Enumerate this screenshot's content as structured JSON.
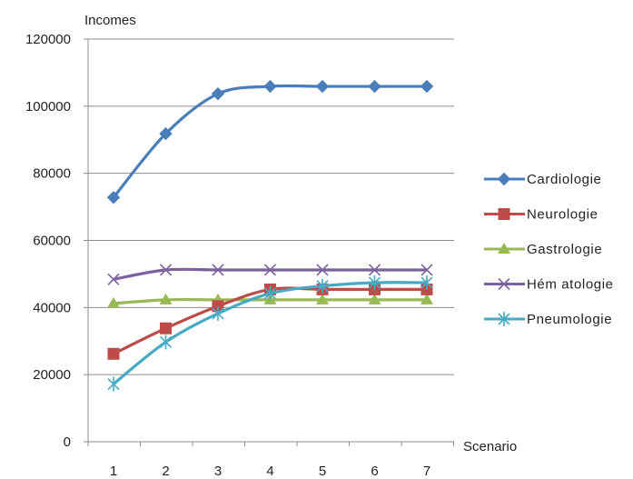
{
  "chart_data": {
    "type": "line",
    "title": "",
    "ylabel": "Incomes",
    "xlabel": "Scenario",
    "categories": [
      "1",
      "2",
      "3",
      "4",
      "5",
      "6",
      "7"
    ],
    "ylim": [
      0,
      120000
    ],
    "yticks": [
      0,
      20000,
      40000,
      60000,
      80000,
      100000,
      120000
    ],
    "ytick_labels": [
      "0",
      "20000",
      "40000",
      "60000",
      "80000",
      "100000",
      "120000"
    ],
    "grid": "horizontal",
    "legend_position": "right",
    "series": [
      {
        "name": "Cardiologie",
        "color": "#4a7ebb",
        "marker": "diamond",
        "values": [
          72800,
          91800,
          103700,
          105900,
          105900,
          105900,
          105900
        ]
      },
      {
        "name": "Neurologie",
        "color": "#be4b48",
        "marker": "square",
        "values": [
          26200,
          33800,
          40400,
          45400,
          45400,
          45400,
          45400
        ]
      },
      {
        "name": "Gastrologie",
        "color": "#98b954",
        "marker": "triangle",
        "values": [
          41200,
          42300,
          42300,
          42300,
          42300,
          42300,
          42300
        ]
      },
      {
        "name": "Hém atologie",
        "color": "#7d60a0",
        "marker": "x",
        "values": [
          48400,
          51200,
          51200,
          51200,
          51200,
          51200,
          51200
        ]
      },
      {
        "name": "Pneumologie",
        "color": "#46aac5",
        "marker": "star",
        "values": [
          17200,
          29700,
          38200,
          44200,
          46400,
          47400,
          47400
        ]
      }
    ]
  }
}
